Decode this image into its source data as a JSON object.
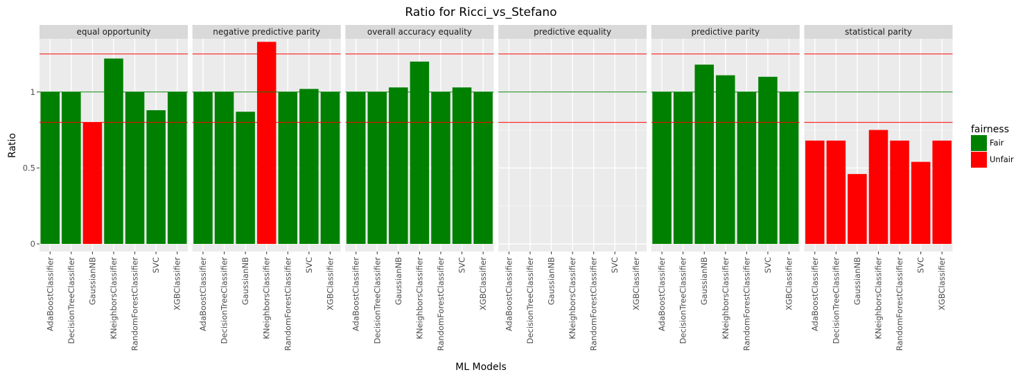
{
  "chart_data": {
    "type": "bar",
    "title": "Ratio for Ricci_vs_Stefano",
    "xlabel": "ML Models",
    "ylabel": "Ratio",
    "ylim": [
      -0.05,
      1.35
    ],
    "yticks": [
      0,
      0.5,
      1
    ],
    "ytick_labels": [
      "0",
      "0.5",
      "1"
    ],
    "reference_lines": [
      {
        "value": 1.25,
        "color": "#ff0000"
      },
      {
        "value": 1.0,
        "color": "#008000"
      },
      {
        "value": 0.8,
        "color": "#ff0000"
      }
    ],
    "categories": [
      "AdaBoostClassifier",
      "DecisionTreeClassifier",
      "GaussianNB",
      "KNeighborsClassifier",
      "RandomForestClassifier",
      "SVC",
      "XGBClassifier"
    ],
    "legend": {
      "title": "fairness",
      "position": "right",
      "items": [
        {
          "label": "Fair",
          "color": "#008000"
        },
        {
          "label": "Unfair",
          "color": "#ff0000"
        }
      ]
    },
    "facets": [
      {
        "name": "equal opportunity",
        "values": [
          1.0,
          1.0,
          0.8,
          1.22,
          1.0,
          0.88,
          1.0
        ],
        "fairness": [
          "Fair",
          "Fair",
          "Unfair",
          "Fair",
          "Fair",
          "Fair",
          "Fair"
        ]
      },
      {
        "name": "negative predictive parity",
        "values": [
          1.0,
          1.0,
          0.87,
          1.33,
          1.0,
          1.02,
          1.0
        ],
        "fairness": [
          "Fair",
          "Fair",
          "Fair",
          "Unfair",
          "Fair",
          "Fair",
          "Fair"
        ]
      },
      {
        "name": "overall accuracy equality",
        "values": [
          1.0,
          1.0,
          1.03,
          1.2,
          1.0,
          1.03,
          1.0
        ],
        "fairness": [
          "Fair",
          "Fair",
          "Fair",
          "Fair",
          "Fair",
          "Fair",
          "Fair"
        ]
      },
      {
        "name": "predictive equality",
        "values": [
          null,
          null,
          null,
          null,
          null,
          null,
          null
        ],
        "fairness": [
          null,
          null,
          null,
          null,
          null,
          null,
          null
        ]
      },
      {
        "name": "predictive parity",
        "values": [
          1.0,
          1.0,
          1.18,
          1.11,
          1.0,
          1.1,
          1.0
        ],
        "fairness": [
          "Fair",
          "Fair",
          "Fair",
          "Fair",
          "Fair",
          "Fair",
          "Fair"
        ]
      },
      {
        "name": "statistical parity",
        "values": [
          0.68,
          0.68,
          0.46,
          0.75,
          0.68,
          0.54,
          0.68
        ],
        "fairness": [
          "Unfair",
          "Unfair",
          "Unfair",
          "Unfair",
          "Unfair",
          "Unfair",
          "Unfair"
        ]
      }
    ],
    "grid": true
  }
}
